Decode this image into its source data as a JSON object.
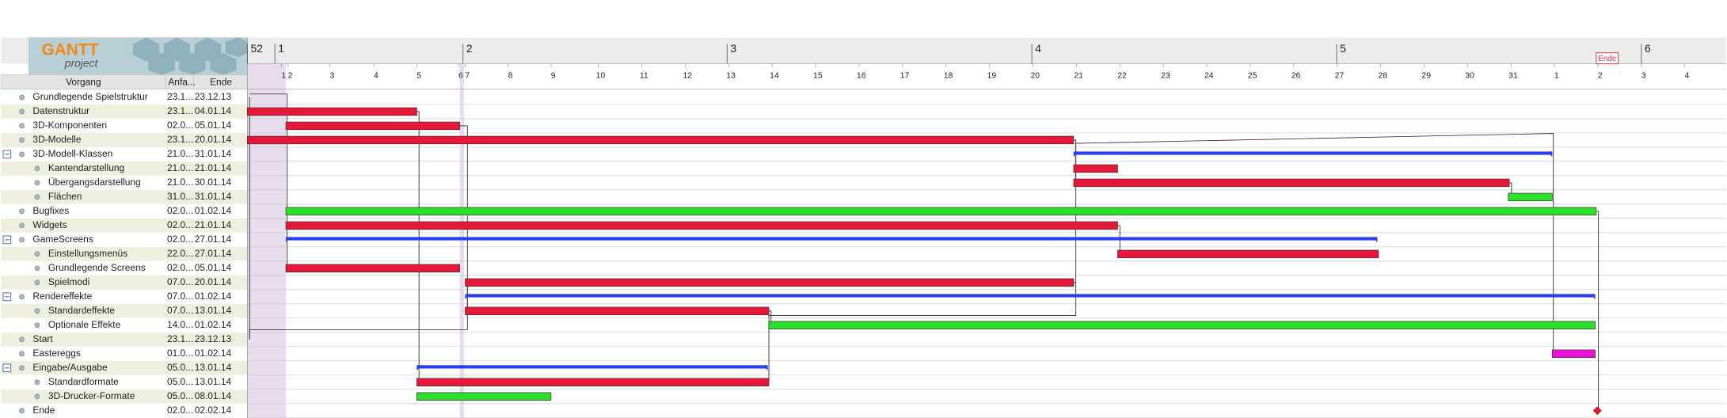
{
  "logo": {
    "title": "GANTT",
    "subtitle": "project"
  },
  "columns": [
    "Vorgang",
    "Anfa...",
    "Ende"
  ],
  "tasks": [
    {
      "name": "Grundlegende Spielstruktur",
      "start": "23.1...",
      "end": "23.12.13"
    },
    {
      "name": "Datenstruktur",
      "start": "23.1...",
      "end": "04.01.14"
    },
    {
      "name": "3D-Komponenten",
      "start": "02.0...",
      "end": "05.01.14"
    },
    {
      "name": "3D-Modelle",
      "start": "23.1...",
      "end": "20.01.14"
    },
    {
      "name": "3D-Modell-Klassen",
      "start": "21.0...",
      "end": "31.01.14"
    },
    {
      "name": "Kantendarstellung",
      "start": "21.0...",
      "end": "21.01.14"
    },
    {
      "name": "Übergangsdarstellung",
      "start": "21.0...",
      "end": "30.01.14"
    },
    {
      "name": "Flächen",
      "start": "31.0...",
      "end": "31.01.14"
    },
    {
      "name": "Bugfixes",
      "start": "02.0...",
      "end": "01.02.14"
    },
    {
      "name": "Widgets",
      "start": "02.0...",
      "end": "21.01.14"
    },
    {
      "name": "GameScreens",
      "start": "02.0...",
      "end": "27.01.14"
    },
    {
      "name": "Einstellungsmenüs",
      "start": "22.0...",
      "end": "27.01.14"
    },
    {
      "name": "Grundlegende Screens",
      "start": "02.0...",
      "end": "05.01.14"
    },
    {
      "name": "Spielmodi",
      "start": "07.0...",
      "end": "20.01.14"
    },
    {
      "name": "Rendereffekte",
      "start": "07.0...",
      "end": "01.02.14"
    },
    {
      "name": "Standardeffekte",
      "start": "07.0...",
      "end": "13.01.14"
    },
    {
      "name": "Optionale Effekte",
      "start": "14.0...",
      "end": "01.02.14"
    },
    {
      "name": "Start",
      "start": "23.1...",
      "end": "23.12.13"
    },
    {
      "name": "Eastereggs",
      "start": "01.0...",
      "end": "01.02.14"
    },
    {
      "name": "Eingabe/Ausgabe",
      "start": "05.0...",
      "end": "13.01.14"
    },
    {
      "name": "Standardformate",
      "start": "05.0...",
      "end": "13.01.14"
    },
    {
      "name": "3D-Drucker-Formate",
      "start": "05.0...",
      "end": "08.01.14"
    },
    {
      "name": "Ende",
      "start": "02.0...",
      "end": "02.02.14"
    }
  ],
  "timeline": {
    "weeks": [
      "52",
      "1",
      "2",
      "3",
      "4",
      "5",
      "6"
    ],
    "days": [
      "1",
      "2",
      "3",
      "4",
      "5",
      "6",
      "7",
      "8",
      "9",
      "10",
      "11",
      "12",
      "13",
      "14",
      "15",
      "16",
      "17",
      "18",
      "19",
      "20",
      "21",
      "22",
      "23",
      "24",
      "25",
      "26",
      "27",
      "28",
      "29",
      "30",
      "31",
      "1",
      "2",
      "3",
      "4"
    ],
    "milestone_label": "Ende"
  }
}
